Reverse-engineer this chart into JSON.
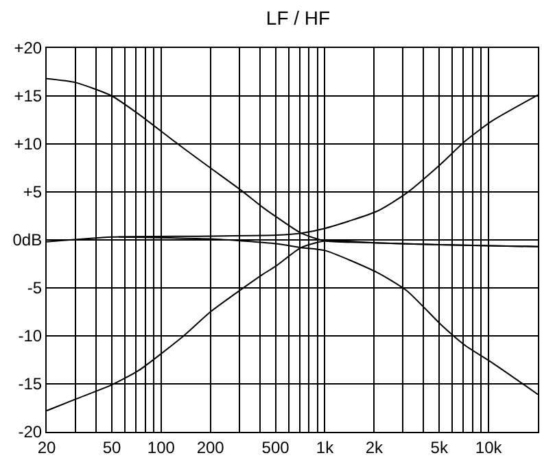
{
  "chart_data": {
    "type": "line",
    "title": "LF / HF",
    "log": "x",
    "grid": true,
    "marker": "none",
    "line_style": "solid",
    "xlim": [
      20,
      20000
    ],
    "xticks": [
      20,
      {
        "value": 30,
        "label": null
      },
      {
        "value": 40,
        "label": null
      },
      50,
      {
        "value": 60,
        "label": null
      },
      {
        "value": 70,
        "label": null
      },
      {
        "value": 80,
        "label": null
      },
      {
        "value": 90,
        "label": null
      },
      100,
      200,
      {
        "value": 300,
        "label": null
      },
      {
        "value": 400,
        "label": null
      },
      500,
      {
        "value": 600,
        "label": null
      },
      {
        "value": 700,
        "label": null
      },
      {
        "value": 800,
        "label": null
      },
      {
        "value": 900,
        "label": null
      },
      {
        "value": 1000,
        "label": "1k"
      },
      {
        "value": 2000,
        "label": "2k"
      },
      {
        "value": 3000,
        "label": null
      },
      {
        "value": 4000,
        "label": null
      },
      {
        "value": 5000,
        "label": "5k"
      },
      {
        "value": 6000,
        "label": null
      },
      {
        "value": 7000,
        "label": null
      },
      {
        "value": 8000,
        "label": null
      },
      {
        "value": 9000,
        "label": null
      },
      {
        "value": 10000,
        "label": "10k"
      }
    ],
    "ylim": [
      -20,
      20
    ],
    "yticks": [
      {
        "value": 20,
        "label": "+20"
      },
      {
        "value": 15,
        "label": "+15"
      },
      {
        "value": 10,
        "label": "+10"
      },
      {
        "value": 5,
        "label": "+5"
      },
      {
        "value": 0,
        "label": "0dB"
      },
      -5,
      -10,
      -15,
      -20
    ],
    "series": [
      {
        "color": "#000000",
        "x": [
          20,
          30,
          50,
          73,
          131,
          200,
          312,
          417,
          505,
          717,
          1000,
          2000,
          5000,
          20000
        ],
        "values": [
          16.8,
          16.4,
          15.0,
          13.1,
          9.8,
          7.5,
          5.1,
          3.4,
          2.4,
          0.7,
          -0.1,
          -0.3,
          -0.5,
          -0.7
        ]
      },
      {
        "color": "#000000",
        "x": [
          20,
          30,
          50,
          73,
          135,
          200,
          312,
          417,
          505,
          717,
          1000,
          2000,
          5000,
          20000
        ],
        "values": [
          -17.8,
          -16.6,
          -15.1,
          -13.6,
          -10.1,
          -7.5,
          -5.1,
          -3.6,
          -2.7,
          -0.8,
          -0.1,
          -0.3,
          -0.5,
          -0.7
        ]
      },
      {
        "color": "#000000",
        "x": [
          20,
          50,
          200,
          505,
          717,
          1000,
          2090,
          3170,
          5100,
          7200,
          10500,
          20000
        ],
        "values": [
          -0.2,
          0.3,
          0.4,
          0.5,
          0.7,
          1.2,
          3.0,
          4.9,
          7.9,
          10.3,
          12.4,
          15.1
        ]
      },
      {
        "color": "#000000",
        "x": [
          55,
          200,
          505,
          717,
          1000,
          2090,
          3170,
          5100,
          7200,
          10500,
          20000
        ],
        "values": [
          0.3,
          0.1,
          -0.4,
          -0.8,
          -1.1,
          -3.4,
          -5.3,
          -8.8,
          -11.0,
          -12.8,
          -16.1
        ]
      }
    ]
  }
}
